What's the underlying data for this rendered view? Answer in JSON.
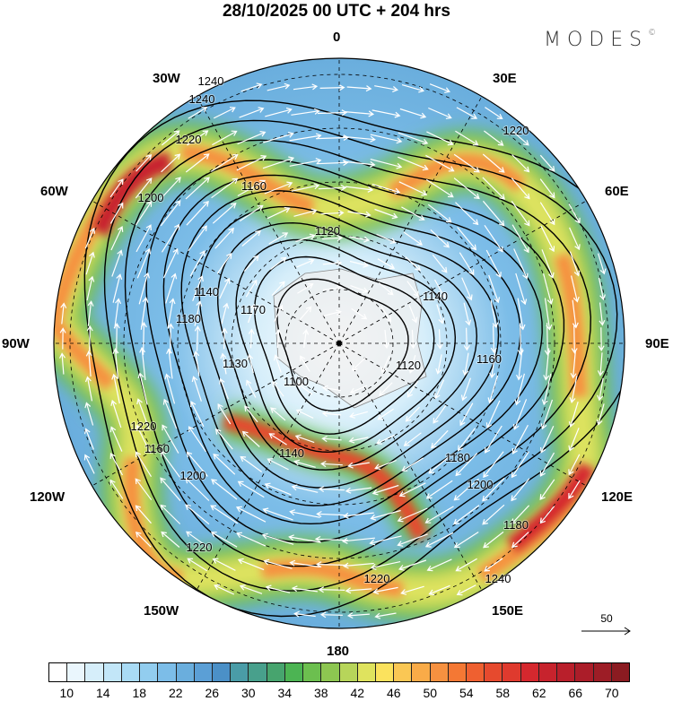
{
  "title": "28/10/2025  00 UTC  + 204 hrs",
  "logo": {
    "text": "MODES",
    "mark": "©"
  },
  "longitude_labels": {
    "n0": "0",
    "e30": "30E",
    "e60": "60E",
    "e90": "90E",
    "e120": "120E",
    "e150": "150E",
    "s180": "180",
    "w150": "150W",
    "w120": "120W",
    "w90": "90W",
    "w60": "60W",
    "w30": "30W"
  },
  "contour_labels": [
    "1240",
    "1220",
    "1160",
    "1200",
    "1140",
    "1120",
    "1180",
    "1130",
    "1170",
    "1100",
    "1120",
    "1160",
    "1140",
    "1200",
    "1200",
    "1220",
    "1180",
    "1220",
    "1220",
    "1240",
    "1180",
    "1160",
    "1140",
    "1240",
    "1220",
    "1240"
  ],
  "vector_reference": {
    "value": "50"
  },
  "colorbar": {
    "labels": [
      "10",
      "14",
      "18",
      "22",
      "26",
      "30",
      "34",
      "38",
      "42",
      "46",
      "50",
      "54",
      "58",
      "62",
      "66",
      "70"
    ],
    "colors": [
      "#ffffff",
      "#eaf6fd",
      "#d6eefa",
      "#c2e6f8",
      "#a9dbf5",
      "#92cdef",
      "#7cbde8",
      "#6aaedd",
      "#5b9fd6",
      "#4b90c7",
      "#4a9ca7",
      "#48a08c",
      "#47a46e",
      "#4cb453",
      "#6cbf4f",
      "#8dc651",
      "#b7d55a",
      "#dfe35e",
      "#fbe25d",
      "#fac754",
      "#f9ab48",
      "#f69140",
      "#f47834",
      "#ef6030",
      "#e64a2e",
      "#df3a2e",
      "#d5282e",
      "#c7232d",
      "#b91f2b",
      "#ab1d29",
      "#9d1d26",
      "#8b1b21"
    ]
  }
}
